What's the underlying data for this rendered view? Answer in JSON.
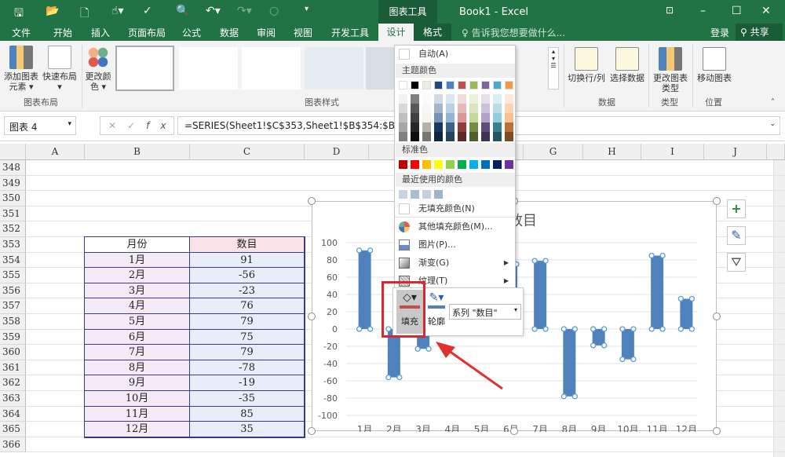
{
  "titlebar": {
    "context_tab": "图表工具",
    "title": "Book1 - Excel"
  },
  "tabs": [
    "文件",
    "开始",
    "插入",
    "页面布局",
    "公式",
    "数据",
    "审阅",
    "视图",
    "开发工具",
    "设计",
    "格式"
  ],
  "tell_me": "告诉我您想要做什么...",
  "login": "登录",
  "share": "共享",
  "ribbon": {
    "add_element": "添加图表元素",
    "quick_layout": "快速布局",
    "change_colors": "更改颜色",
    "group_layout": "图表布局",
    "group_styles": "图表样式",
    "switch_row_col": "切换行/列",
    "select_data": "选择数据",
    "group_data": "数据",
    "change_type": "更改图表类型",
    "group_type": "类型",
    "move_chart": "移动图表",
    "group_location": "位置"
  },
  "formula_bar": {
    "name_box": "图表 4",
    "formula": "=SERIES(Sheet1!$C$353,Sheet1!$B$354:$B$36",
    "formula_tail": ")"
  },
  "columns": [
    "A",
    "B",
    "C",
    "D",
    "G",
    "H",
    "I",
    "J"
  ],
  "rows": [
    "348",
    "349",
    "350",
    "351",
    "352",
    "353",
    "354",
    "355",
    "356",
    "357",
    "358",
    "359",
    "360",
    "361",
    "362",
    "363",
    "364",
    "365",
    "366"
  ],
  "table": {
    "header": [
      "月份",
      "数目"
    ],
    "rows": [
      [
        "1月",
        "91"
      ],
      [
        "2月",
        "-56"
      ],
      [
        "3月",
        "-23"
      ],
      [
        "4月",
        "76"
      ],
      [
        "5月",
        "79"
      ],
      [
        "6月",
        "75"
      ],
      [
        "7月",
        "79"
      ],
      [
        "8月",
        "-78"
      ],
      [
        "9月",
        "-19"
      ],
      [
        "10月",
        "-35"
      ],
      [
        "11月",
        "85"
      ],
      [
        "12月",
        "35"
      ]
    ]
  },
  "chart_data": {
    "type": "bar",
    "title": "数目",
    "categories": [
      "1月",
      "2月",
      "3月",
      "4月",
      "5月",
      "6月",
      "7月",
      "8月",
      "9月",
      "10月",
      "11月",
      "12月"
    ],
    "values": [
      91,
      -56,
      -23,
      76,
      79,
      75,
      79,
      -78,
      -19,
      -35,
      85,
      35
    ],
    "ylim": [
      -100,
      100
    ],
    "yticks": [
      "100",
      "80",
      "60",
      "40",
      "20",
      "0",
      "-20",
      "-40",
      "-60",
      "-80",
      "-100"
    ],
    "grid": true,
    "bar_color": "#4f81bd"
  },
  "picker": {
    "auto": "自动(A)",
    "theme_header": "主题颜色",
    "standard_header": "标准色",
    "recent_header": "最近使用的颜色",
    "no_fill": "无填充颜色(N)",
    "more_colors": "其他填充颜色(M)...",
    "picture": "图片(P)...",
    "gradient": "渐变(G)",
    "texture": "纹理(T)",
    "theme_colors": [
      "#ffffff",
      "#000000",
      "#eeece1",
      "#1f497d",
      "#4f81bd",
      "#c0504d",
      "#9bbb59",
      "#8064a2",
      "#4bacc6",
      "#f79646"
    ],
    "standard_colors": [
      "#c00000",
      "#ff0000",
      "#ffc000",
      "#ffff00",
      "#92d050",
      "#00b050",
      "#00b0f0",
      "#0070c0",
      "#002060",
      "#7030a0"
    ],
    "recent_colors": [
      "#c9d3e0",
      "#a9bdd4",
      "#c4d0de",
      "#9eb3cc"
    ]
  },
  "mini_toolbar": {
    "fill": "填充",
    "outline": "轮廓",
    "series_select": "系列 \"数目\""
  },
  "accent": "#217346"
}
